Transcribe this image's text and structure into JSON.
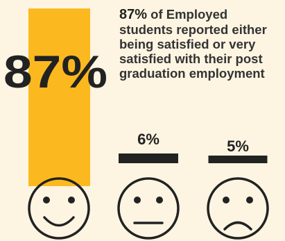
{
  "caption": {
    "lead": "87%",
    "text": " of Employed students reported either being satisfied or very satisfied with their post graduation employment"
  },
  "colors": {
    "background": "#fdf5e2",
    "satisfied": "#fbb91f",
    "ink": "#222222"
  },
  "chart_data": {
    "type": "bar",
    "categories": [
      "satisfied",
      "neutral",
      "dissatisfied"
    ],
    "values": [
      87,
      6,
      5
    ],
    "labels": [
      "87%",
      "6%",
      "5%"
    ],
    "icons": [
      "smiley-face-icon",
      "neutral-face-icon",
      "sad-face-icon"
    ],
    "ylim": [
      0,
      100
    ]
  }
}
